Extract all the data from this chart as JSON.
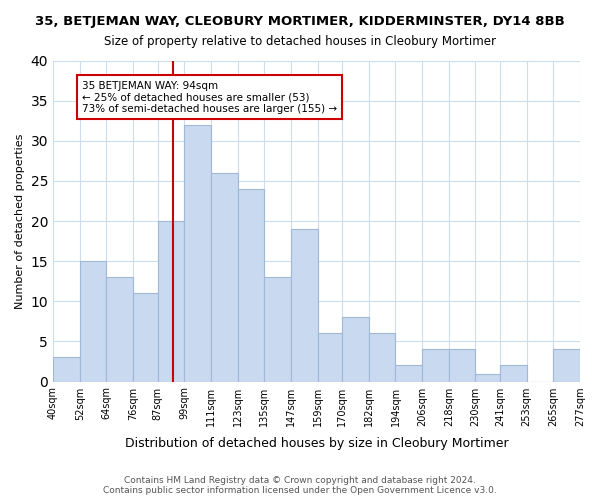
{
  "title": "35, BETJEMAN WAY, CLEOBURY MORTIMER, KIDDERMINSTER, DY14 8BB",
  "subtitle": "Size of property relative to detached houses in Cleobury Mortimer",
  "xlabel": "Distribution of detached houses by size in Cleobury Mortimer",
  "ylabel": "Number of detached properties",
  "bar_edges": [
    40,
    52,
    64,
    76,
    87,
    99,
    111,
    123,
    135,
    147,
    159,
    170,
    182,
    194,
    206,
    218,
    230,
    241,
    253,
    265,
    277
  ],
  "bar_heights": [
    3,
    15,
    13,
    11,
    20,
    32,
    26,
    24,
    13,
    19,
    6,
    8,
    6,
    2,
    4,
    4,
    1,
    2,
    0,
    4
  ],
  "tick_labels": [
    "40sqm",
    "52sqm",
    "64sqm",
    "76sqm",
    "87sqm",
    "99sqm",
    "111sqm",
    "123sqm",
    "135sqm",
    "147sqm",
    "159sqm",
    "170sqm",
    "182sqm",
    "194sqm",
    "206sqm",
    "218sqm",
    "230sqm",
    "241sqm",
    "253sqm",
    "265sqm",
    "277sqm"
  ],
  "bar_color": "#c9d9f0",
  "bar_edge_color": "#a0b8d8",
  "vline_x": 94,
  "vline_color": "#cc0000",
  "ylim": [
    0,
    40
  ],
  "yticks": [
    0,
    5,
    10,
    15,
    20,
    25,
    30,
    35,
    40
  ],
  "annotation_text": "35 BETJEMAN WAY: 94sqm\n← 25% of detached houses are smaller (53)\n73% of semi-detached houses are larger (155) →",
  "annotation_box_color": "#ffffff",
  "annotation_box_edge": "#cc0000",
  "footer_line1": "Contains HM Land Registry data © Crown copyright and database right 2024.",
  "footer_line2": "Contains public sector information licensed under the Open Government Licence v3.0.",
  "bg_color": "#ffffff",
  "grid_color": "#ccddee"
}
